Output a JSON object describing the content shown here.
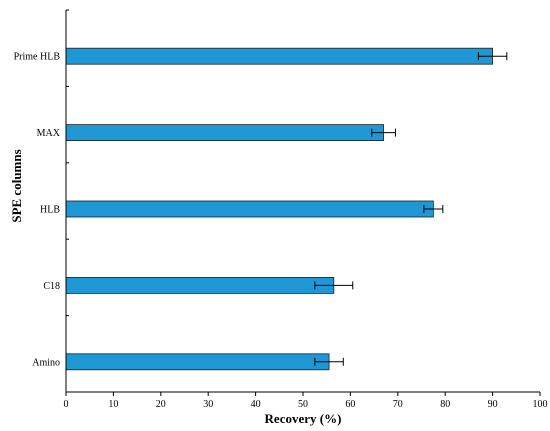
{
  "chart_data": {
    "type": "bar",
    "orientation": "horizontal",
    "categories": [
      "Prime HLB",
      "MAX",
      "HLB",
      "C18",
      "Amino"
    ],
    "values": [
      90,
      67,
      77.5,
      56.5,
      55.5
    ],
    "errors": [
      3,
      2.5,
      2,
      4,
      3
    ],
    "xlabel": "Recovery (%)",
    "ylabel": "SPE columns",
    "xlim": [
      0,
      100
    ],
    "xticks": [
      "0",
      "10",
      "20",
      "30",
      "40",
      "50",
      "60",
      "70",
      "80",
      "90",
      "100"
    ],
    "grid": false,
    "bar_color": "#1f97d4"
  }
}
